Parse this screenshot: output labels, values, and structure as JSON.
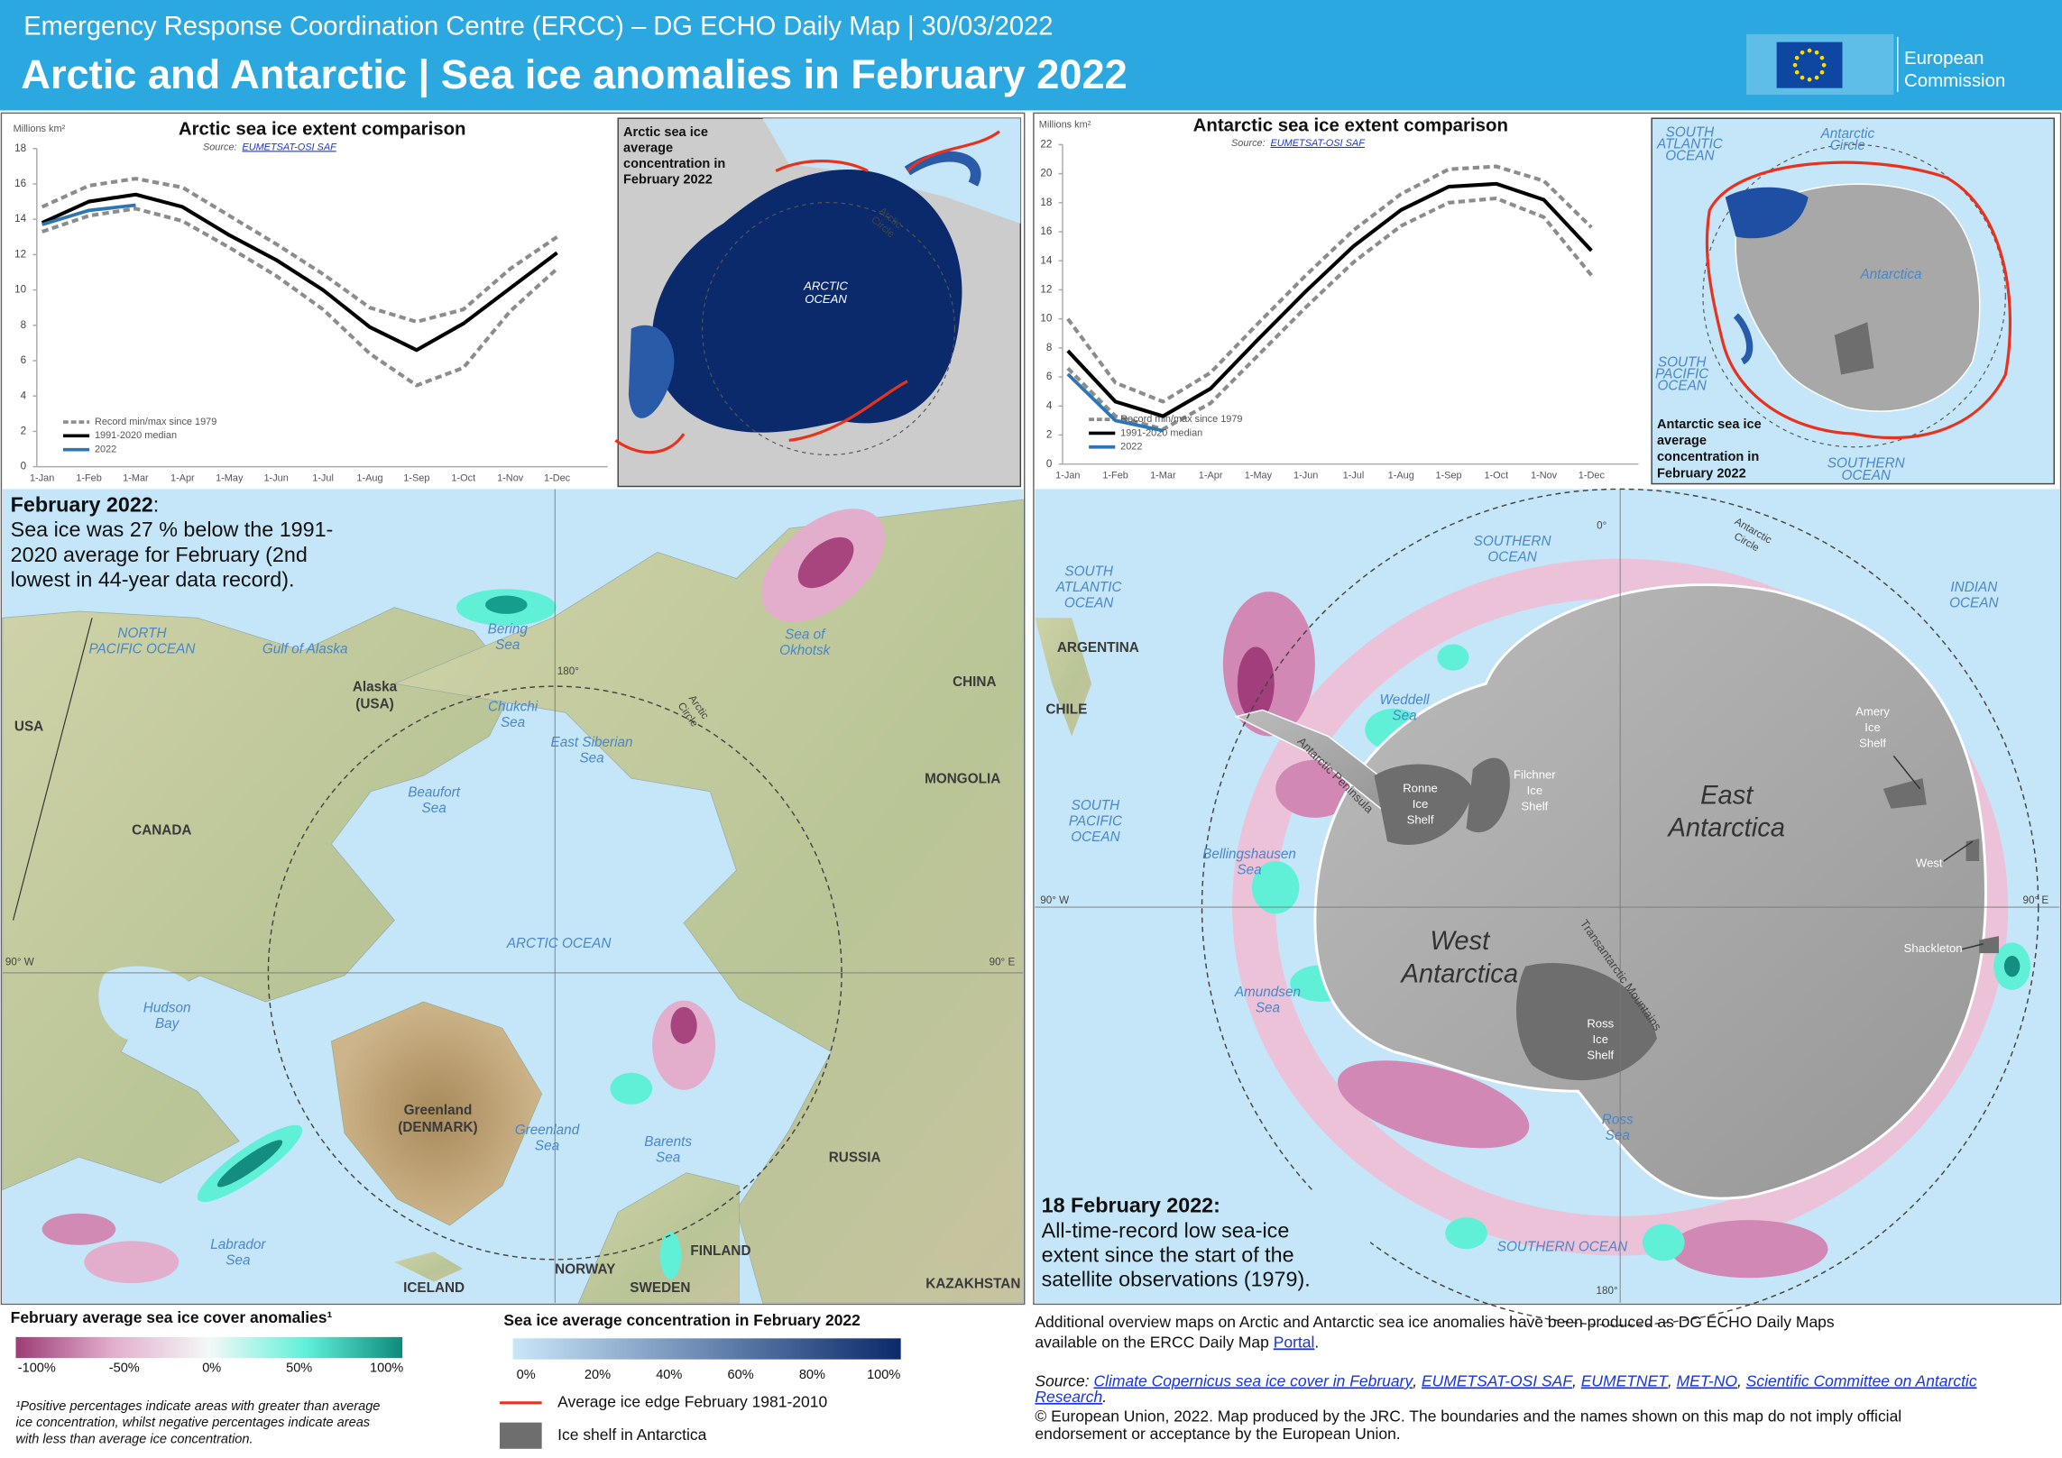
{
  "header": {
    "subtitle": "Emergency Response Coordination Centre (ERCC) – DG ECHO Daily Map | 30/03/2022",
    "title": "Arctic and Antarctic | Sea ice anomalies in February 2022",
    "logo": [
      "European",
      "Commission"
    ]
  },
  "arctic_chart": {
    "type": "line",
    "title": "Arctic sea ice extent comparison",
    "source_label": "Source:",
    "source": "EUMETSAT-OSI SAF",
    "ylabel": "Millions km²",
    "categories": [
      "1-Jan",
      "1-Feb",
      "1-Mar",
      "1-Apr",
      "1-May",
      "1-Jun",
      "1-Jul",
      "1-Aug",
      "1-Sep",
      "1-Oct",
      "1-Nov",
      "1-Dec"
    ],
    "ylim": [
      0,
      18
    ],
    "yticks": [
      0,
      2,
      4,
      6,
      8,
      10,
      12,
      14,
      16,
      18
    ],
    "series": [
      {
        "name": "Record min/max since 1979",
        "color": "#8c8c8c",
        "dashed": true,
        "high": [
          14.7,
          15.9,
          16.3,
          15.8,
          14.2,
          12.6,
          10.9,
          9.0,
          8.2,
          8.9,
          11.2,
          13.0
        ],
        "low": [
          13.3,
          14.2,
          14.6,
          13.9,
          12.4,
          10.8,
          8.9,
          6.4,
          4.6,
          5.6,
          8.8,
          11.2
        ]
      },
      {
        "name": "1991-2020 median",
        "color": "#000000",
        "values": [
          13.8,
          15.0,
          15.4,
          14.7,
          13.1,
          11.7,
          10.0,
          7.9,
          6.6,
          8.1,
          10.1,
          12.1
        ]
      },
      {
        "name": "2022",
        "color": "#2e75b6",
        "values": [
          13.7,
          14.5,
          14.8,
          null,
          null,
          null,
          null,
          null,
          null,
          null,
          null,
          null
        ]
      }
    ]
  },
  "antarctic_chart": {
    "type": "line",
    "title": "Antarctic sea ice extent comparison",
    "source_label": "Source:",
    "source": "EUMETSAT-OSI SAF",
    "ylabel": "Millions km²",
    "categories": [
      "1-Jan",
      "1-Feb",
      "1-Mar",
      "1-Apr",
      "1-May",
      "1-Jun",
      "1-Jul",
      "1-Aug",
      "1-Sep",
      "1-Oct",
      "1-Nov",
      "1-Dec"
    ],
    "ylim": [
      0,
      22
    ],
    "yticks": [
      0,
      2,
      4,
      6,
      8,
      10,
      12,
      14,
      16,
      18,
      20,
      22
    ],
    "series": [
      {
        "name": "Record min/max since 1979",
        "color": "#8c8c8c",
        "dashed": true,
        "high": [
          10.0,
          5.6,
          4.3,
          6.3,
          9.7,
          13.0,
          16.1,
          18.6,
          20.3,
          20.5,
          19.5,
          16.3
        ],
        "low": [
          6.6,
          3.3,
          2.4,
          4.2,
          7.5,
          10.8,
          13.9,
          16.4,
          18.0,
          18.3,
          17.0,
          13.0
        ]
      },
      {
        "name": "1991-2020 median",
        "color": "#000000",
        "values": [
          7.8,
          4.3,
          3.3,
          5.2,
          8.6,
          11.9,
          15.0,
          17.5,
          19.1,
          19.3,
          18.2,
          14.7
        ]
      },
      {
        "name": "2022",
        "color": "#2e75b6",
        "values": [
          6.2,
          3.0,
          2.3,
          null,
          null,
          null,
          null,
          null,
          null,
          null,
          null,
          null
        ]
      }
    ]
  },
  "arctic_inset": {
    "title": [
      "Arctic sea ice",
      "average",
      "concentration in",
      "February 2022"
    ],
    "ocean": [
      "ARCTIC",
      "OCEAN"
    ],
    "circle": [
      "Arctic",
      "Circle"
    ]
  },
  "antarctic_inset": {
    "title": [
      "Antarctic sea ice",
      "average",
      "concentration in",
      "February 2022"
    ],
    "labels": [
      [
        "SOUTH",
        "ATLANTIC",
        "OCEAN"
      ],
      [
        "Antarctic",
        "Circle"
      ],
      [
        "SOUTH",
        "PACIFIC",
        "OCEAN"
      ],
      [
        "SOUTHERN",
        "OCEAN"
      ]
    ],
    "continent": "Antarctica"
  },
  "arctic_map": {
    "note_title": "February 2022",
    "note_colon": ":",
    "note": [
      "Sea ice was 27 % below the 1991-",
      "2020 average for February (2nd",
      "lowest in 44-year data record)."
    ],
    "seas": [
      [
        "NORTH",
        "PACIFIC OCEAN"
      ],
      [
        "Gulf of Alaska"
      ],
      [
        "Bering",
        "Sea"
      ],
      [
        "Sea of",
        "Okhotsk"
      ],
      [
        "Chukchi",
        "Sea"
      ],
      [
        "East Siberian",
        "Sea"
      ],
      [
        "Beaufort",
        "Sea"
      ],
      [
        "ARCTIC OCEAN"
      ],
      [
        "Hudson",
        "Bay"
      ],
      [
        "Greenland",
        "Sea"
      ],
      [
        "Barents",
        "Sea"
      ],
      [
        "Labrador",
        "Sea"
      ]
    ],
    "countries": [
      [
        "USA"
      ],
      [
        "Alaska",
        "(USA)"
      ],
      [
        "CANADA"
      ],
      [
        "CHINA"
      ],
      [
        "MONGOLIA"
      ],
      [
        "Greenland",
        "(DENMARK)"
      ],
      [
        "RUSSIA"
      ],
      [
        "ICELAND"
      ],
      [
        "NORWAY"
      ],
      [
        "FINLAND"
      ],
      [
        "SWEDEN"
      ],
      [
        "KAZAKHSTAN"
      ]
    ],
    "circle": [
      "Arctic",
      "Circle"
    ],
    "graticule": [
      "180°",
      "90° W",
      "90° E"
    ]
  },
  "antarctic_map": {
    "note_title": "18 February 2022:",
    "note": [
      "All-time-record low sea-ice",
      "extent since the start of the",
      "satellite observations (1979)."
    ],
    "seas": [
      [
        "SOUTHERN",
        "OCEAN"
      ],
      [
        "SOUTH",
        "ATLANTIC",
        "OCEAN"
      ],
      [
        "INDIAN",
        "OCEAN"
      ],
      [
        "Weddell",
        "Sea"
      ],
      [
        "SOUTH",
        "PACIFIC",
        "OCEAN"
      ],
      [
        "Bellingshausen",
        "Sea"
      ],
      [
        "Amundsen",
        "Sea"
      ],
      [
        "Ross",
        "Sea"
      ],
      [
        "SOUTHERN  OCEAN"
      ]
    ],
    "countries": [
      [
        "ARGENTINA"
      ],
      [
        "CHILE"
      ]
    ],
    "shelves": [
      [
        "Ronne",
        "Ice",
        "Shelf"
      ],
      [
        "Filchner",
        "Ice",
        "Shelf"
      ],
      [
        "Amery",
        "Ice",
        "Shelf"
      ],
      [
        "West"
      ],
      [
        "Shackleton"
      ],
      [
        "Ross",
        "Ice",
        "Shelf"
      ]
    ],
    "regions": [
      [
        "East",
        "Antarctica"
      ],
      [
        "West",
        "Antarctica"
      ]
    ],
    "features": [
      "Antarctic Peninsula",
      "Transantarctic Mountains"
    ],
    "circle": [
      "Antarctic",
      "Circle"
    ],
    "graticule": [
      "0°",
      "90° W",
      "90° E",
      "180°"
    ]
  },
  "legend": {
    "anomaly_title": "February average sea ice cover anomalies¹",
    "anomaly_labels": [
      "-100%",
      "-50%",
      "0%",
      "50%",
      "100%"
    ],
    "anomaly_colors": [
      "#9c3d78",
      "#e2aecb",
      "#f4f8f8",
      "#60f0d8",
      "#0e8a7b"
    ],
    "footnote": [
      "¹Positive percentages indicate areas with greater than average",
      "ice concentration, whilst negative percentages indicate areas",
      "with less than average ice concentration."
    ],
    "concentration_title": "Sea ice average concentration in February 2022",
    "concentration_labels": [
      "0%",
      "20%",
      "40%",
      "60%",
      "80%",
      "100%"
    ],
    "concentration_colors": [
      "#c9e6f8",
      "#0b2a6b"
    ],
    "edge": "Average ice edge February 1981-2010",
    "shelf": "Ice shelf in Antarctica"
  },
  "footer": {
    "additional": [
      [
        {
          "text": "Additional overview maps on Arctic and Antarctic sea ice anomalies have been produced as DG ECHO Daily Maps",
          "link": false
        }
      ],
      [
        {
          "text": "available on the ERCC Daily Map ",
          "link": false
        },
        {
          "text": "Portal",
          "link": true
        },
        {
          "text": ".",
          "link": false
        }
      ]
    ],
    "source": [
      [
        {
          "text": "Source: ",
          "link": false
        },
        {
          "text": "Climate Copernicus sea ice cover in February",
          "link": true
        },
        {
          "text": ", ",
          "link": false
        },
        {
          "text": "EUMETSAT-OSI SAF",
          "link": true
        },
        {
          "text": ", ",
          "link": false
        },
        {
          "text": "EUMETNET",
          "link": true
        },
        {
          "text": ", ",
          "link": false
        },
        {
          "text": "MET-NO",
          "link": true
        },
        {
          "text": ", ",
          "link": false
        },
        {
          "text": "Scientific Committee on Antarctic",
          "link": true
        }
      ],
      [
        {
          "text": "Research",
          "link": true
        },
        {
          "text": ".",
          "link": false
        }
      ]
    ],
    "copyright": [
      "© European Union, 2022. Map produced by the JRC. The boundaries and the names shown on this map do not imply official",
      "endorsement or acceptance by the European Union."
    ]
  }
}
